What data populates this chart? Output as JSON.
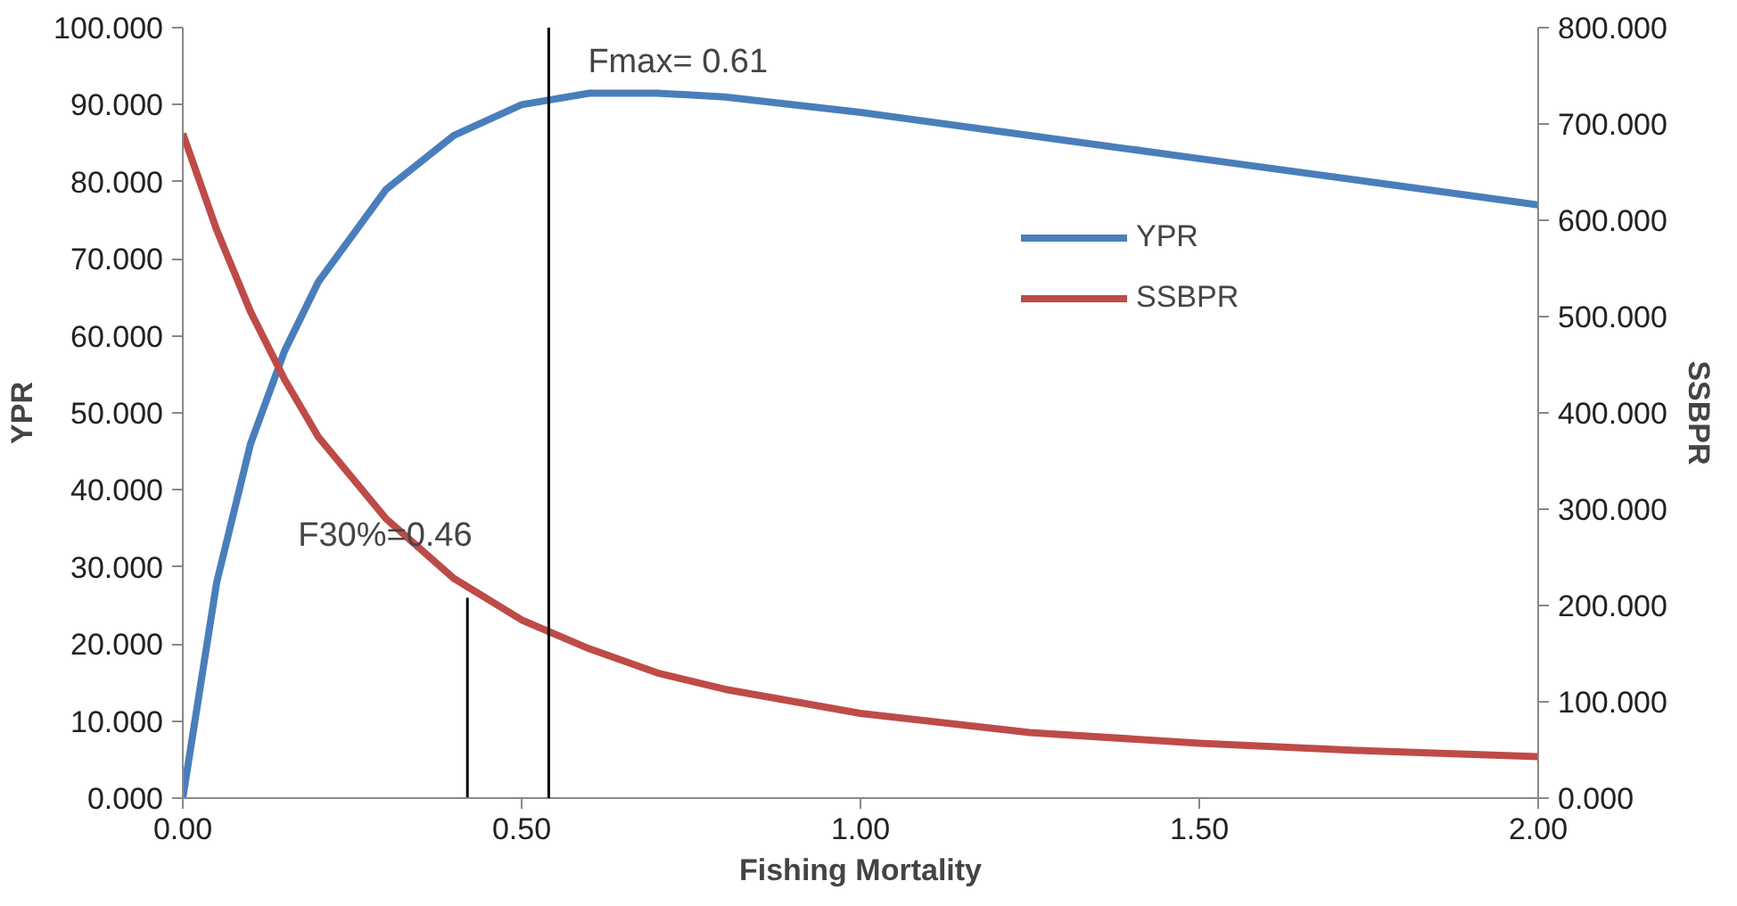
{
  "chart_data": {
    "type": "line",
    "xlabel": "Fishing Mortality",
    "ylabel": "YPR",
    "y2label": "SSBPR",
    "x": [
      0,
      0.05,
      0.1,
      0.15,
      0.2,
      0.3,
      0.4,
      0.5,
      0.6,
      0.7,
      0.8,
      1.0,
      1.25,
      1.5,
      1.75,
      2.0
    ],
    "series": [
      {
        "name": "YPR",
        "color": "#4a7ebb",
        "values": [
          0,
          28,
          46,
          58,
          67,
          79,
          86,
          90,
          91.5,
          91.5,
          91,
          89,
          86,
          83,
          80,
          77
        ]
      },
      {
        "name": "SSBPR",
        "color": "#be4b48",
        "axis": "y2",
        "values": [
          690,
          590,
          505,
          435,
          375,
          290,
          228,
          185,
          155,
          130,
          113,
          88,
          68,
          57,
          49,
          43
        ]
      }
    ],
    "xlim": [
      0,
      2
    ],
    "xticks": [
      {
        "value": 0,
        "label": "0.00"
      },
      {
        "value": 0.5,
        "label": "0.50"
      },
      {
        "value": 1,
        "label": "1.00"
      },
      {
        "value": 1.5,
        "label": "1.50"
      },
      {
        "value": 2,
        "label": "2.00"
      }
    ],
    "ylim": [
      0,
      100
    ],
    "yticks": [
      {
        "value": 0,
        "label": "0.000"
      },
      {
        "value": 10,
        "label": "10.000"
      },
      {
        "value": 20,
        "label": "20.000"
      },
      {
        "value": 30,
        "label": "30.000"
      },
      {
        "value": 40,
        "label": "40.000"
      },
      {
        "value": 50,
        "label": "50.000"
      },
      {
        "value": 60,
        "label": "60.000"
      },
      {
        "value": 70,
        "label": "70.000"
      },
      {
        "value": 80,
        "label": "80.000"
      },
      {
        "value": 90,
        "label": "90.000"
      },
      {
        "value": 100,
        "label": "100.000"
      }
    ],
    "y2lim": [
      0,
      800
    ],
    "y2ticks": [
      {
        "value": 0,
        "label": "0.000"
      },
      {
        "value": 100,
        "label": "100.000"
      },
      {
        "value": 200,
        "label": "200.000"
      },
      {
        "value": 300,
        "label": "300.000"
      },
      {
        "value": 400,
        "label": "400.000"
      },
      {
        "value": 500,
        "label": "500.000"
      },
      {
        "value": 600,
        "label": "600.000"
      },
      {
        "value": 700,
        "label": "700.000"
      },
      {
        "value": 800,
        "label": "800.000"
      }
    ],
    "annotations": [
      {
        "text": "F30%=0.46",
        "x": 0.42,
        "y": 26
      },
      "Fmax= 0.61"
    ],
    "ref_lines": [
      {
        "axis": "x",
        "value": 0.54,
        "color": "#000000"
      }
    ],
    "legend": "top",
    "grid": false,
    "marker": "none",
    "line_style": "solid"
  }
}
